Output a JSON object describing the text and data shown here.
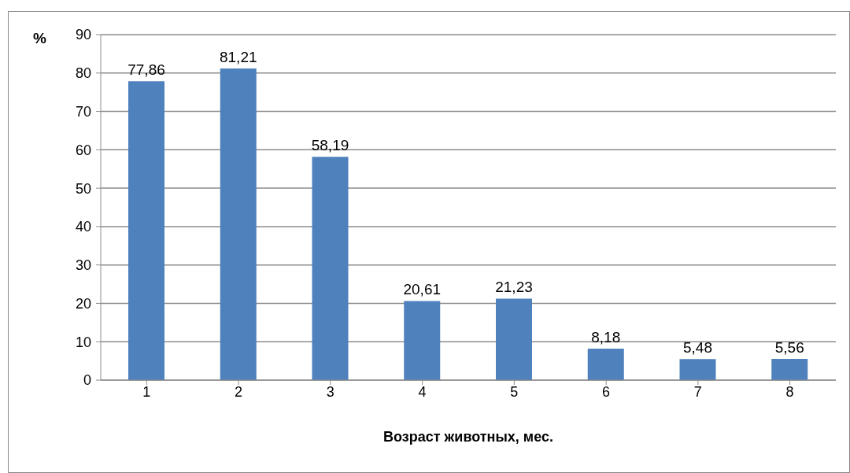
{
  "chart_data": {
    "type": "bar",
    "xlabel": "Возраст животных, мес.",
    "ylabel": "%",
    "categories": [
      "1",
      "2",
      "3",
      "4",
      "5",
      "6",
      "7",
      "8"
    ],
    "values": [
      77.86,
      81.21,
      58.19,
      20.61,
      21.23,
      8.18,
      5.48,
      5.56
    ],
    "value_labels": [
      "77,86",
      "81,21",
      "58,19",
      "20,61",
      "21,23",
      "8,18",
      "5,48",
      "5,56"
    ],
    "color": "#4f81bd",
    "ylim": [
      0,
      90
    ],
    "yticks": [
      0,
      10,
      20,
      30,
      40,
      50,
      60,
      70,
      80,
      90
    ],
    "grid": "y"
  }
}
